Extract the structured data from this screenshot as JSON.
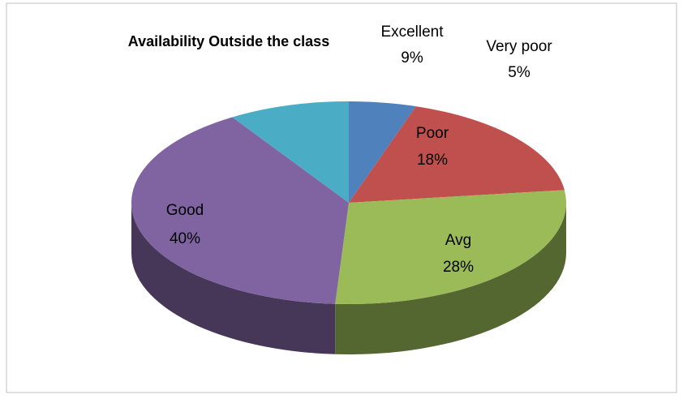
{
  "chart_data": {
    "type": "pie3d",
    "title": "Availability Outside the class",
    "categories": [
      "Very poor",
      "Poor",
      "Avg",
      "Good",
      "Excellent"
    ],
    "values": [
      5,
      18,
      28,
      40,
      9
    ],
    "value_labels": [
      "5%",
      "18%",
      "28%",
      "40%",
      "9%"
    ],
    "colors": [
      "#4f81bd",
      "#c0504d",
      "#9bbb59",
      "#8064a2",
      "#4bacc6"
    ]
  }
}
